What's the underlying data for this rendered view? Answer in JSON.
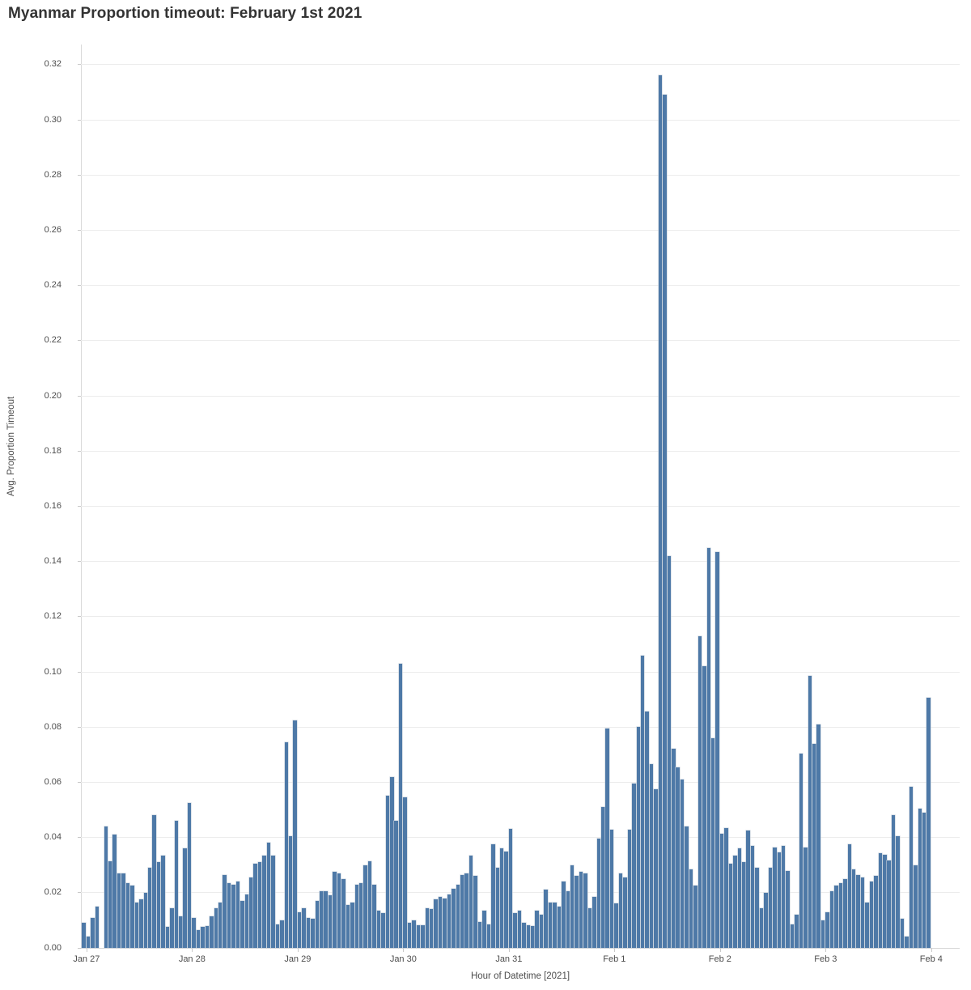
{
  "title": "Myanmar Proportion timeout: February 1st 2021",
  "chart_data": {
    "type": "bar",
    "title": "Myanmar Proportion timeout: February 1st 2021",
    "xlabel": "Hour of Datetime [2021]",
    "ylabel": "Avg. Proportion Timeout",
    "bar_color": "#4e79a7",
    "grid": true,
    "legend": false,
    "ylim": [
      0,
      0.33
    ],
    "y_ticks": [
      "0.00",
      "0.02",
      "0.04",
      "0.06",
      "0.08",
      "0.10",
      "0.12",
      "0.14",
      "0.16",
      "0.18",
      "0.20",
      "0.22",
      "0.24",
      "0.26",
      "0.28",
      "0.30",
      "0.32"
    ],
    "x_tick_labels": [
      "Jan 27",
      "Jan 28",
      "Jan 29",
      "Jan 30",
      "Jan 31",
      "Feb 1",
      "Feb 2",
      "Feb 3",
      "Feb 4"
    ],
    "x_unit": "hour",
    "hours_per_day": 24,
    "values": [
      0.009,
      0.004,
      0.011,
      0.015,
      0,
      0.044,
      0.0315,
      0.041,
      0.027,
      0.027,
      0.0235,
      0.0225,
      0.0165,
      0.0175,
      0.02,
      0.029,
      0.048,
      0.031,
      0.0335,
      0.0075,
      0.0145,
      0.046,
      0.0115,
      0.036,
      0.0525,
      0.011,
      0.0065,
      0.0075,
      0.008,
      0.0115,
      0.0145,
      0.0165,
      0.0265,
      0.0235,
      0.023,
      0.024,
      0.017,
      0.0195,
      0.0255,
      0.0305,
      0.031,
      0.0335,
      0.038,
      0.0335,
      0.0085,
      0.01,
      0.0745,
      0.0405,
      0.0825,
      0.013,
      0.0145,
      0.011,
      0.0105,
      0.017,
      0.0205,
      0.0205,
      0.019,
      0.0275,
      0.027,
      0.025,
      0.0155,
      0.0165,
      0.023,
      0.0235,
      0.03,
      0.0315,
      0.023,
      0.0135,
      0.0125,
      0.055,
      0.062,
      0.046,
      0.103,
      0.0545,
      0.009,
      0.01,
      0.0082,
      0.0082,
      0.0145,
      0.014,
      0.0175,
      0.0185,
      0.018,
      0.0195,
      0.0215,
      0.023,
      0.0265,
      0.027,
      0.0335,
      0.026,
      0.0095,
      0.0135,
      0.0085,
      0.0375,
      0.029,
      0.036,
      0.035,
      0.0432,
      0.0125,
      0.0135,
      0.009,
      0.0082,
      0.0078,
      0.0135,
      0.012,
      0.021,
      0.0165,
      0.0165,
      0.015,
      0.024,
      0.0205,
      0.03,
      0.026,
      0.0275,
      0.027,
      0.0145,
      0.0185,
      0.0395,
      0.051,
      0.0795,
      0.0428,
      0.016,
      0.027,
      0.0255,
      0.0428,
      0.0595,
      0.08,
      0.106,
      0.0855,
      0.0665,
      0.0575,
      0.316,
      0.309,
      0.142,
      0.072,
      0.0655,
      0.061,
      0.044,
      0.0285,
      0.0225,
      0.113,
      0.102,
      0.145,
      0.076,
      0.1435,
      0.0415,
      0.0435,
      0.0305,
      0.0335,
      0.036,
      0.031,
      0.0425,
      0.037,
      0.029,
      0.0145,
      0.02,
      0.029,
      0.0365,
      0.0345,
      0.037,
      0.028,
      0.0085,
      0.012,
      0.0705,
      0.0365,
      0.0985,
      0.074,
      0.081,
      0.01,
      0.013,
      0.0205,
      0.0225,
      0.0235,
      0.025,
      0.0375,
      0.0285,
      0.0265,
      0.0255,
      0.0165,
      0.024,
      0.026,
      0.0343,
      0.0338,
      0.0318,
      0.0482,
      0.0405,
      0.0105,
      0.004,
      0.0585,
      0.03,
      0.0505,
      0.049,
      0.0905
    ]
  }
}
